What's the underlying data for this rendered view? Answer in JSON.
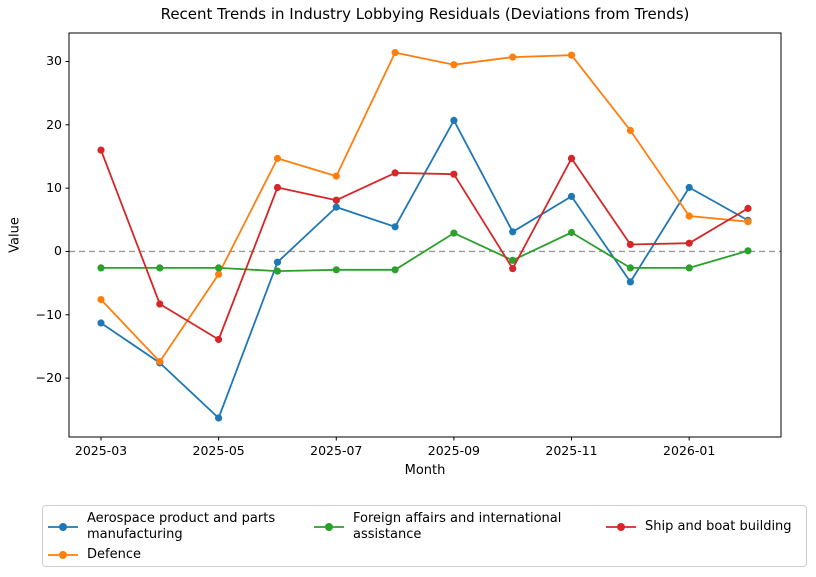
{
  "chart_data": {
    "type": "line",
    "title": "Recent Trends in Industry Lobbying Residuals (Deviations from Trends)",
    "xlabel": "Month",
    "ylabel": "Value",
    "x": [
      "2025-03",
      "2025-04",
      "2025-05",
      "2025-06",
      "2025-07",
      "2025-08",
      "2025-09",
      "2025-10",
      "2025-11",
      "2025-12",
      "2026-01",
      "2026-02"
    ],
    "xtick_index": [
      0,
      2,
      4,
      6,
      8,
      10
    ],
    "xtick_labels": [
      "2025-03",
      "2025-05",
      "2025-07",
      "2025-09",
      "2025-11",
      "2026-01"
    ],
    "ytick_values": [
      -20,
      -10,
      0,
      10,
      20,
      30
    ],
    "ytick_labels": [
      "−20",
      "−10",
      "0",
      "10",
      "20",
      "30"
    ],
    "ylim": [
      -29.3,
      34.5
    ],
    "grid": false,
    "legend_position": "bottom",
    "zero_line": {
      "value": 0,
      "style": "dashed",
      "color": "#9a9a9a"
    },
    "series": [
      {
        "name": "Aerospace product and parts manufacturing",
        "color": "#1f77b4",
        "values": [
          -11.3,
          -17.6,
          -26.3,
          -1.7,
          7.0,
          3.9,
          20.7,
          3.1,
          8.7,
          -4.8,
          10.1,
          4.9
        ]
      },
      {
        "name": "Defence",
        "color": "#ff7f0e",
        "values": [
          -7.6,
          -17.4,
          -3.6,
          14.7,
          11.9,
          31.4,
          29.5,
          30.7,
          31.0,
          19.1,
          5.6,
          4.7
        ]
      },
      {
        "name": "Foreign affairs and international assistance",
        "color": "#2ca02c",
        "values": [
          -2.6,
          -2.6,
          -2.6,
          -3.1,
          -2.9,
          -2.9,
          2.9,
          -1.4,
          3.0,
          -2.6,
          -2.6,
          0.1
        ]
      },
      {
        "name": "Ship and boat building",
        "color": "#d62728",
        "values": [
          16.0,
          -8.3,
          -13.9,
          10.1,
          8.1,
          12.4,
          12.2,
          -2.7,
          14.7,
          1.1,
          1.3,
          6.8
        ]
      }
    ]
  }
}
